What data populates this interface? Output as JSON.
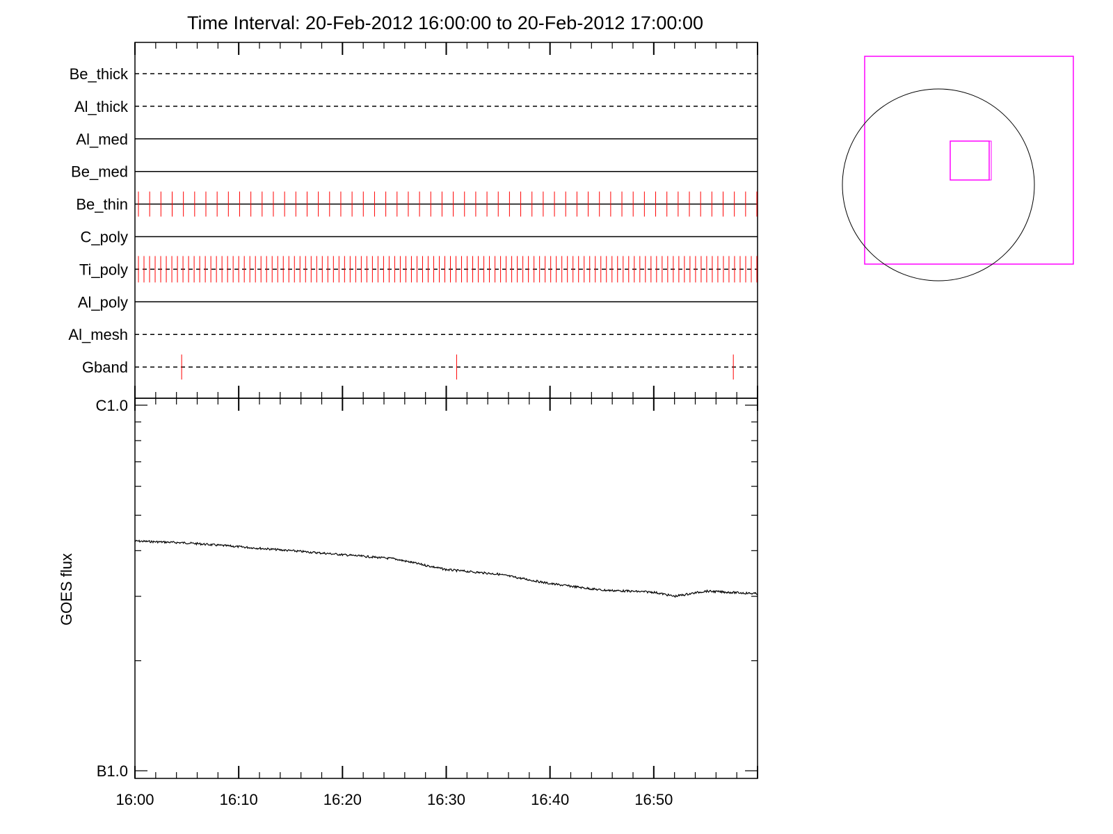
{
  "chart_data": [
    {
      "type": "line",
      "title": "Time Interval: 20-Feb-2012 16:00:00 to 20-Feb-2012 17:00:00",
      "x_range": [
        "16:00",
        "17:00"
      ],
      "filters": [
        {
          "name": "Be_thick",
          "style": "dashed",
          "ticks": []
        },
        {
          "name": "Al_thick",
          "style": "dashed",
          "ticks": []
        },
        {
          "name": "Al_med",
          "style": "solid",
          "ticks": []
        },
        {
          "name": "Be_med",
          "style": "solid",
          "ticks": []
        },
        {
          "name": "Be_thin",
          "style": "solid",
          "ticks_count": 56
        },
        {
          "name": "C_poly",
          "style": "solid",
          "ticks": []
        },
        {
          "name": "Ti_poly",
          "style": "dashed",
          "ticks_count": 112
        },
        {
          "name": "Al_poly",
          "style": "solid",
          "ticks": []
        },
        {
          "name": "Al_mesh",
          "style": "dashed",
          "ticks": []
        },
        {
          "name": "Gband",
          "style": "dashed",
          "ticks": [
            "16:04:30",
            "16:31:00",
            "16:57:40"
          ]
        }
      ],
      "tick_color": "#ff0000"
    },
    {
      "type": "line",
      "ylabel": "GOES flux",
      "y_scale": "log",
      "y_ticks": [
        "C1.0",
        "B1.0"
      ],
      "y_range": [
        1e-07,
        1e-06
      ],
      "x_ticks": [
        "16:00",
        "16:10",
        "16:20",
        "16:30",
        "16:40",
        "16:50"
      ],
      "series": [
        {
          "x": [
            "16:00",
            "16:05",
            "16:10",
            "16:15",
            "16:20",
            "16:25",
            "16:30",
            "16:35",
            "16:40",
            "16:45",
            "16:50",
            "16:52",
            "16:55",
            "17:00"
          ],
          "y": [
            4.25e-07,
            4.2e-07,
            4.1e-07,
            4e-07,
            3.9e-07,
            3.8e-07,
            3.55e-07,
            3.45e-07,
            3.25e-07,
            3.12e-07,
            3.08e-07,
            3e-07,
            3.1e-07,
            3.05e-07
          ]
        }
      ]
    }
  ],
  "locator": {
    "outer_box_color": "#ff00ff",
    "disk_color": "#000000"
  }
}
